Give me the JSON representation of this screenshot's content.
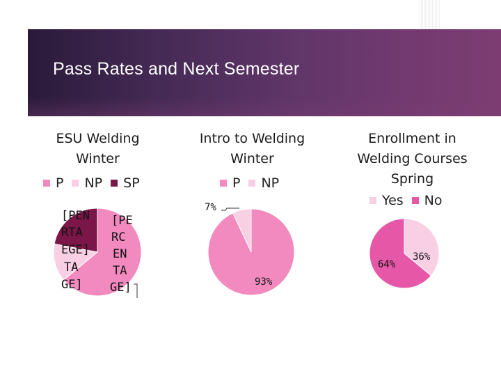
{
  "slide": {
    "title": "Pass Rates and Next Semester"
  },
  "colors": {
    "P": "#f28ac0",
    "NP": "#f9cfe4",
    "SP": "#7a1648",
    "Yes": "#f9cfe4",
    "No": "#e657a7",
    "banner": "#5f3568"
  },
  "chart_data": [
    {
      "type": "pie",
      "title_lines": [
        "ESU Welding",
        "Winter"
      ],
      "legend": [
        {
          "name": "P",
          "color": "#f28ac0"
        },
        {
          "name": "NP",
          "color": "#f9cfe4"
        },
        {
          "name": "SP",
          "color": "#7a1648"
        }
      ],
      "slices": [
        {
          "label": "P",
          "value": 64,
          "color": "#f28ac0"
        },
        {
          "label": "NP",
          "value": 14,
          "color": "#f9cfe4"
        },
        {
          "label": "SP",
          "value": 22,
          "color": "#7a1648"
        }
      ],
      "data_labels": [
        {
          "lines": [
            "[PE",
            "RC",
            "EN",
            "TA",
            "GE]"
          ]
        },
        {
          "lines": [
            "[PEN",
            "RTA",
            "EGE]",
            "TA",
            "GE]"
          ]
        },
        {
          "lines": [
            "[PE"
          ]
        }
      ]
    },
    {
      "type": "pie",
      "title_lines": [
        "Intro to Welding",
        "Winter"
      ],
      "legend": [
        {
          "name": "P",
          "color": "#f28ac0"
        },
        {
          "name": "NP",
          "color": "#f9cfe4"
        }
      ],
      "slices": [
        {
          "label": "P",
          "value": 93,
          "color": "#f28ac0"
        },
        {
          "label": "NP",
          "value": 7,
          "color": "#f9cfe4"
        }
      ],
      "data_labels": [
        {
          "text": "93%"
        },
        {
          "text": "7%"
        }
      ]
    },
    {
      "type": "pie",
      "title_lines": [
        "Enrollment in",
        "Welding Courses",
        "Spring"
      ],
      "legend": [
        {
          "name": "Yes",
          "color": "#f9cfe4"
        },
        {
          "name": "No",
          "color": "#e657a7"
        }
      ],
      "slices": [
        {
          "label": "Yes",
          "value": 36,
          "color": "#f9cfe4"
        },
        {
          "label": "No",
          "value": 64,
          "color": "#e657a7"
        }
      ],
      "data_labels": [
        {
          "text": "36%"
        },
        {
          "text": "64%"
        }
      ]
    }
  ]
}
